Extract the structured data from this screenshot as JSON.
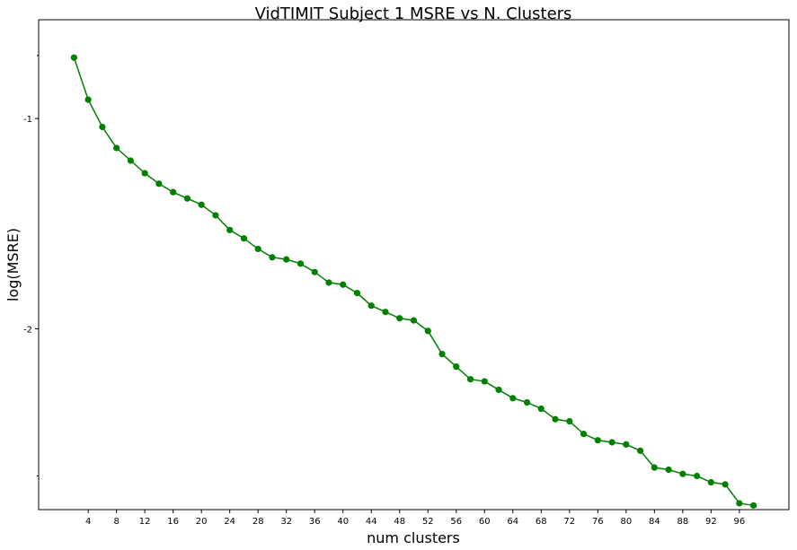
{
  "chart_data": {
    "type": "line",
    "title": "VidTIMIT Subject 1 MSRE vs N. Clusters",
    "xlabel": "num clusters",
    "ylabel": "log(MSRE)",
    "x_ticks": [
      4,
      8,
      12,
      16,
      20,
      24,
      28,
      32,
      36,
      40,
      44,
      48,
      52,
      56,
      60,
      64,
      68,
      72,
      76,
      80,
      84,
      88,
      92,
      96
    ],
    "y_ticks": [
      -1,
      -2
    ],
    "y_tick_labels": [
      "-1",
      "-2"
    ],
    "xlim": [
      -3,
      103
    ],
    "ylim": [
      -2.86,
      -0.53
    ],
    "grid": false,
    "color": "#008000",
    "series": [
      {
        "x": [
          2,
          4,
          6,
          8,
          10,
          12,
          14,
          16,
          18,
          20,
          22,
          24,
          26,
          28,
          30,
          32,
          34,
          36,
          38,
          40,
          42,
          44,
          46,
          48,
          50,
          52,
          54,
          56,
          58,
          60,
          62,
          64,
          66,
          68,
          70,
          72,
          74,
          76,
          78,
          80,
          82,
          84,
          86,
          88,
          90,
          92,
          94,
          96,
          98
        ],
        "y": [
          -0.71,
          -0.91,
          -1.04,
          -1.14,
          -1.2,
          -1.26,
          -1.31,
          -1.35,
          -1.38,
          -1.41,
          -1.46,
          -1.53,
          -1.57,
          -1.62,
          -1.66,
          -1.67,
          -1.69,
          -1.73,
          -1.78,
          -1.79,
          -1.83,
          -1.89,
          -1.92,
          -1.95,
          -1.96,
          -2.01,
          -2.12,
          -2.18,
          -2.24,
          -2.25,
          -2.29,
          -2.33,
          -2.35,
          -2.38,
          -2.43,
          -2.44,
          -2.5,
          -2.53,
          -2.54,
          -2.55,
          -2.58,
          -2.66,
          -2.67,
          -2.69,
          -2.7,
          -2.73,
          -2.74,
          -2.83,
          -2.84
        ]
      }
    ]
  }
}
